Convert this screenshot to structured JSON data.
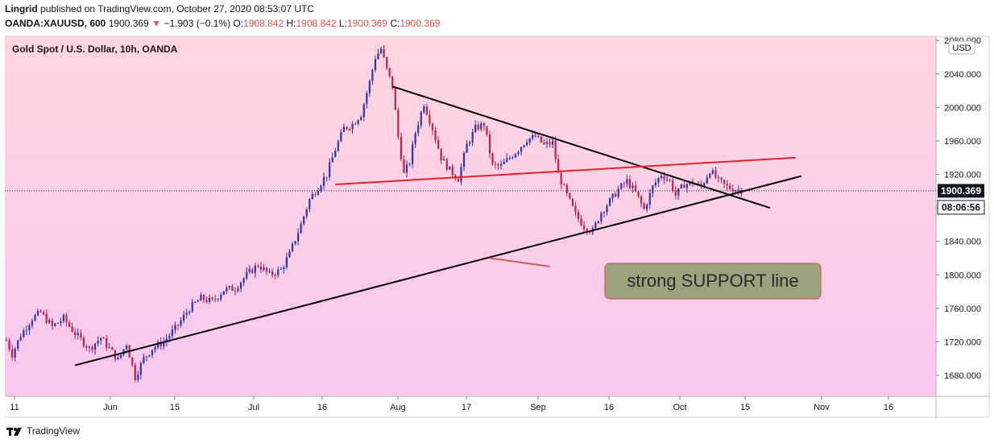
{
  "header": {
    "author": "Lingrid",
    "published": "published on TradingView.com, October 27, 2020 08:53:07 UTC"
  },
  "ohlc": {
    "symbol": "OANDA:XAUUSD, 600",
    "last": "1900.369",
    "change": "−1.903 (−0.1%)",
    "o_label": "O:",
    "o": "1908.842",
    "h_label": "H:",
    "h": "1908.842",
    "l_label": "L:",
    "l": "1900.369",
    "c_label": "C:",
    "c": "1900.369"
  },
  "chart_title": "Gold Spot / U.S. Dollar, 10h, OANDA",
  "currency_badge": "USD",
  "price_tag": "1900.369",
  "countdown_tag": "08:06:56",
  "annotation": "strong SUPPORT line",
  "footer_brand": "TradingView",
  "colors": {
    "bg_top": "#ffd6e0",
    "bg_bottom": "#f8c8ee",
    "bull": "#2c35a8",
    "bear": "#b8234f",
    "trendline": "#000000",
    "resistance": "#e0242a",
    "callout_fill": "#9aa27e",
    "callout_border": "#d15a5a"
  },
  "chart_data": {
    "type": "candlestick",
    "title": "Gold Spot / U.S. Dollar, 10h, OANDA",
    "ylabel": "USD",
    "ylim": [
      1655,
      2085
    ],
    "y_ticks": [
      "2080.000",
      "2040.000",
      "2000.000",
      "1960.000",
      "1920.000",
      "1880.000",
      "1840.000",
      "1800.000",
      "1760.000",
      "1720.000",
      "1680.000"
    ],
    "x_ticks": [
      "11",
      "Jun",
      "15",
      "Jul",
      "16",
      "Aug",
      "17",
      "Sep",
      "16",
      "Oct",
      "15",
      "Nov",
      "16"
    ],
    "last_price": 1900.369,
    "path": [
      [
        0,
        1722
      ],
      [
        2,
        1705
      ],
      [
        5,
        1728
      ],
      [
        9,
        1748
      ],
      [
        12,
        1755
      ],
      [
        16,
        1738
      ],
      [
        20,
        1748
      ],
      [
        24,
        1730
      ],
      [
        29,
        1712
      ],
      [
        33,
        1725
      ],
      [
        36,
        1712
      ],
      [
        39,
        1698
      ],
      [
        42,
        1718
      ],
      [
        45,
        1678
      ],
      [
        48,
        1700
      ],
      [
        51,
        1712
      ],
      [
        55,
        1720
      ],
      [
        60,
        1740
      ],
      [
        64,
        1760
      ],
      [
        68,
        1772
      ],
      [
        72,
        1768
      ],
      [
        76,
        1782
      ],
      [
        80,
        1784
      ],
      [
        84,
        1800
      ],
      [
        88,
        1812
      ],
      [
        92,
        1800
      ],
      [
        96,
        1806
      ],
      [
        99,
        1825
      ],
      [
        103,
        1860
      ],
      [
        106,
        1890
      ],
      [
        109,
        1905
      ],
      [
        112,
        1920
      ],
      [
        115,
        1950
      ],
      [
        118,
        1975
      ],
      [
        121,
        1980
      ],
      [
        124,
        1992
      ],
      [
        127,
        2030
      ],
      [
        129,
        2060
      ],
      [
        131,
        2070
      ],
      [
        133,
        2045
      ],
      [
        135,
        2025
      ],
      [
        137,
        1965
      ],
      [
        139,
        1920
      ],
      [
        141,
        1935
      ],
      [
        143,
        1970
      ],
      [
        146,
        2005
      ],
      [
        149,
        1975
      ],
      [
        152,
        1940
      ],
      [
        155,
        1925
      ],
      [
        158,
        1915
      ],
      [
        161,
        1955
      ],
      [
        164,
        1975
      ],
      [
        167,
        1980
      ],
      [
        170,
        1930
      ],
      [
        173,
        1930
      ],
      [
        176,
        1940
      ],
      [
        179,
        1950
      ],
      [
        182,
        1962
      ],
      [
        185,
        1965
      ],
      [
        188,
        1955
      ],
      [
        191,
        1958
      ],
      [
        193,
        1920
      ],
      [
        196,
        1895
      ],
      [
        199,
        1872
      ],
      [
        202,
        1858
      ],
      [
        205,
        1852
      ],
      [
        208,
        1875
      ],
      [
        211,
        1888
      ],
      [
        214,
        1902
      ],
      [
        217,
        1912
      ],
      [
        220,
        1898
      ],
      [
        223,
        1878
      ],
      [
        226,
        1905
      ],
      [
        229,
        1920
      ],
      [
        232,
        1912
      ],
      [
        234,
        1895
      ],
      [
        237,
        1908
      ],
      [
        240,
        1910
      ],
      [
        243,
        1905
      ],
      [
        246,
        1925
      ],
      [
        249,
        1912
      ],
      [
        252,
        1905
      ],
      [
        255,
        1902
      ],
      [
        257,
        1901
      ]
    ],
    "lines": [
      {
        "name": "support-trendline",
        "color": "trendline",
        "from": [
          24,
          1692
        ],
        "to": [
          278,
          1918
        ]
      },
      {
        "name": "falling-resistance",
        "color": "trendline",
        "from": [
          135,
          2025
        ],
        "to": [
          267,
          1880
        ]
      },
      {
        "name": "rising-resistance",
        "color": "resistance",
        "from": [
          115,
          1908
        ],
        "to": [
          276,
          1940
        ]
      },
      {
        "name": "annotation-pointer",
        "color": "callout_border",
        "from": [
          169,
          1820
        ],
        "to": [
          190,
          1810
        ]
      }
    ]
  }
}
